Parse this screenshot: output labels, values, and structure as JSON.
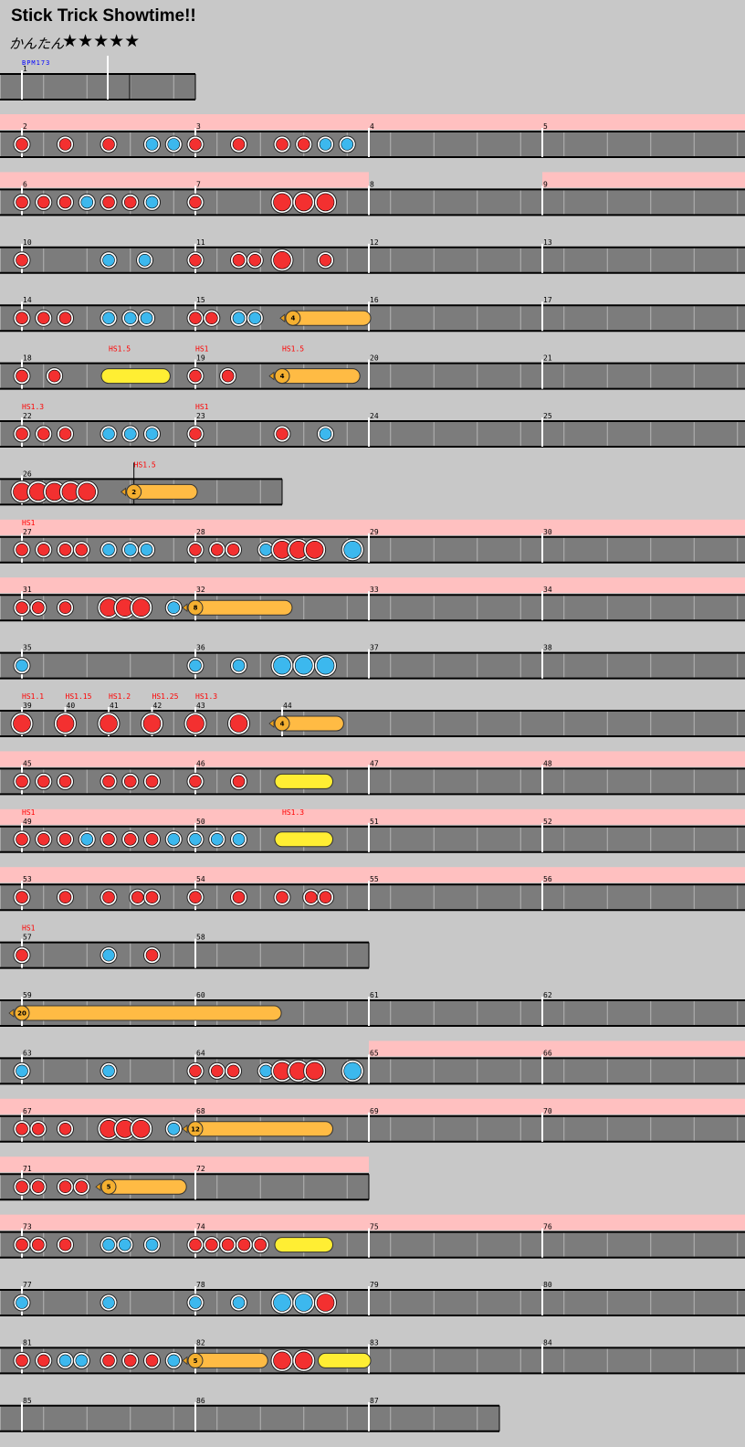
{
  "song": {
    "title": "Stick Trick Showtime!!",
    "difficulty": "かんたん",
    "stars": "★★★★★",
    "bpm_label": "BPM173"
  },
  "colors": {
    "background": "#c8c8c8",
    "lane": "#7c7c7c",
    "gogo": "#ffc0c0",
    "don": "#f33030",
    "ka": "#3cb8ee",
    "drumroll": "#ffbb44",
    "yellow_roll": "#ffee33",
    "hs_text": "#ff0000",
    "bpm_text": "#0000ff"
  },
  "icons": {
    "don_note": "red-circle",
    "ka_note": "blue-circle",
    "roll_head": "orange-circle",
    "balloon_tail": "arrow-icon"
  },
  "legend_note_types": {
    "d": "don (small)",
    "D": "don (large)",
    "k": "ka (small)",
    "K": "ka (large)"
  },
  "rows": [
    {
      "measures": [
        1
      ],
      "length": 1,
      "gogo": [],
      "notes": [],
      "hs": []
    },
    {
      "measures": [
        2,
        3,
        4,
        5
      ],
      "gogo": [
        [
          0,
          4
        ]
      ],
      "hs": [],
      "notes": [
        [
          "d",
          0
        ],
        [
          "d",
          4
        ],
        [
          "d",
          8
        ],
        [
          "k",
          12
        ],
        [
          "k",
          14
        ],
        [
          "d",
          16
        ],
        [
          "d",
          20
        ],
        [
          "d",
          24
        ],
        [
          "d",
          26
        ],
        [
          "k",
          28
        ],
        [
          "k",
          30
        ]
      ]
    },
    {
      "measures": [
        6,
        7,
        8,
        9
      ],
      "gogo": [
        [
          0,
          2
        ],
        [
          3,
          4
        ]
      ],
      "hs": [],
      "notes": [
        [
          "d",
          0
        ],
        [
          "d",
          2
        ],
        [
          "d",
          4
        ],
        [
          "k",
          6
        ],
        [
          "d",
          8
        ],
        [
          "d",
          10
        ],
        [
          "k",
          12
        ],
        [
          "d",
          16
        ],
        [
          "D",
          24
        ],
        [
          "D",
          26
        ],
        [
          "D",
          28
        ]
      ]
    },
    {
      "measures": [
        10,
        11,
        12,
        13
      ],
      "gogo": [],
      "hs": [],
      "notes": [
        [
          "d",
          0
        ],
        [
          "k",
          8
        ],
        [
          "k",
          11.33
        ],
        [
          "d",
          16
        ],
        [
          "d",
          20
        ],
        [
          "d",
          21.5
        ],
        [
          "D",
          24
        ],
        [
          "d",
          28
        ]
      ]
    },
    {
      "measures": [
        14,
        15,
        16,
        17
      ],
      "gogo": [],
      "hs": [],
      "notes": [
        [
          "d",
          0
        ],
        [
          "d",
          2
        ],
        [
          "d",
          4
        ],
        [
          "k",
          8
        ],
        [
          "k",
          10
        ],
        [
          "k",
          11.5
        ],
        [
          "d",
          16
        ],
        [
          "d",
          17.5
        ],
        [
          "k",
          20
        ],
        [
          "k",
          21.5
        ]
      ],
      "rolls": [
        {
          "type": "balloon",
          "start": 25,
          "end": 31.5,
          "count": "4"
        }
      ]
    },
    {
      "measures": [
        18,
        19,
        20,
        21
      ],
      "gogo": [],
      "hs": [
        {
          "at": 8,
          "text": "HS1.5"
        },
        {
          "at": 16,
          "text": "HS1"
        },
        {
          "at": 24,
          "text": "HS1.5"
        }
      ],
      "notes": [
        [
          "d",
          0
        ],
        [
          "d",
          3
        ],
        [
          "d",
          16
        ],
        [
          "d",
          19
        ]
      ],
      "rolls": [
        {
          "type": "yellow",
          "start": 8,
          "end": 13
        },
        {
          "type": "balloon",
          "start": 24,
          "end": 30.5,
          "count": "4"
        }
      ]
    },
    {
      "measures": [
        22,
        23,
        24,
        25
      ],
      "gogo": [],
      "hs": [
        {
          "at": 0,
          "text": "HS1.3"
        },
        {
          "at": 16,
          "text": "HS1"
        }
      ],
      "notes": [
        [
          "d",
          0
        ],
        [
          "d",
          2
        ],
        [
          "d",
          4
        ],
        [
          "k",
          8
        ],
        [
          "k",
          10
        ],
        [
          "k",
          12
        ],
        [
          "d",
          16
        ],
        [
          "d",
          24
        ],
        [
          "k",
          28
        ]
      ]
    },
    {
      "measures": [
        26
      ],
      "length": 1.5,
      "gogo": [],
      "hs": [
        {
          "at": 10.33,
          "text": "HS1.5",
          "flag": true
        }
      ],
      "notes": [
        [
          "D",
          0
        ],
        [
          "D",
          1.5
        ],
        [
          "D",
          3
        ],
        [
          "D",
          4.5
        ],
        [
          "D",
          6
        ]
      ],
      "rolls": [
        {
          "type": "balloon",
          "start": 10.33,
          "end": 15.5,
          "count": "2"
        }
      ]
    },
    {
      "measures": [
        27,
        28,
        29,
        30
      ],
      "gogo": [
        [
          0,
          4
        ]
      ],
      "hs": [
        {
          "at": 0,
          "text": "HS1"
        }
      ],
      "notes": [
        [
          "d",
          0
        ],
        [
          "d",
          2
        ],
        [
          "d",
          4
        ],
        [
          "d",
          5.5
        ],
        [
          "k",
          8
        ],
        [
          "k",
          10
        ],
        [
          "k",
          11.5
        ],
        [
          "d",
          16
        ],
        [
          "d",
          18
        ],
        [
          "d",
          19.5
        ],
        [
          "k",
          22.5
        ],
        [
          "D",
          24
        ],
        [
          "D",
          25.5
        ],
        [
          "D",
          27
        ],
        [
          "K",
          30.5
        ]
      ]
    },
    {
      "measures": [
        31,
        32,
        33,
        34
      ],
      "gogo": [
        [
          0,
          4
        ]
      ],
      "hs": [],
      "notes": [
        [
          "d",
          0
        ],
        [
          "d",
          1.5
        ],
        [
          "d",
          4
        ],
        [
          "D",
          8
        ],
        [
          "D",
          9.5
        ],
        [
          "D",
          11
        ],
        [
          "k",
          14
        ]
      ],
      "rolls": [
        {
          "type": "balloon",
          "start": 16,
          "end": 24.25,
          "count": "8"
        }
      ]
    },
    {
      "measures": [
        35,
        36,
        37,
        38
      ],
      "gogo": [],
      "hs": [],
      "notes": [
        [
          "k",
          0
        ],
        [
          "k",
          16
        ],
        [
          "k",
          20
        ],
        [
          "K",
          24
        ],
        [
          "K",
          26
        ],
        [
          "K",
          28
        ]
      ]
    },
    {
      "measures": [
        39,
        40,
        41,
        42,
        43,
        44
      ],
      "bars": [
        0,
        4,
        8,
        12,
        16,
        24
      ],
      "gogo": [],
      "hs": [
        {
          "at": 0,
          "text": "HS1.1"
        },
        {
          "at": 4,
          "text": "HS1.15"
        },
        {
          "at": 8,
          "text": "HS1.2"
        },
        {
          "at": 12,
          "text": "HS1.25"
        },
        {
          "at": 16,
          "text": "HS1.3"
        }
      ],
      "notes": [
        [
          "D",
          0
        ],
        [
          "D",
          4
        ],
        [
          "D",
          8
        ],
        [
          "D",
          12
        ],
        [
          "D",
          16
        ],
        [
          "D",
          20
        ]
      ],
      "rolls": [
        {
          "type": "balloon",
          "start": 24,
          "end": 29,
          "count": "4"
        }
      ]
    },
    {
      "measures": [
        45,
        46,
        47,
        48
      ],
      "gogo": [
        [
          0,
          4
        ]
      ],
      "hs": [],
      "notes": [
        [
          "d",
          0
        ],
        [
          "d",
          2
        ],
        [
          "d",
          4
        ],
        [
          "d",
          8
        ],
        [
          "d",
          10
        ],
        [
          "d",
          12
        ],
        [
          "d",
          16
        ],
        [
          "d",
          20
        ]
      ],
      "rolls": [
        {
          "type": "yellow",
          "start": 24,
          "end": 28
        }
      ]
    },
    {
      "measures": [
        49,
        50,
        51,
        52
      ],
      "gogo": [
        [
          0,
          4
        ]
      ],
      "hs": [
        {
          "at": 0,
          "text": "HS1"
        },
        {
          "at": 24,
          "text": "HS1.3"
        }
      ],
      "notes": [
        [
          "d",
          0
        ],
        [
          "d",
          2
        ],
        [
          "d",
          4
        ],
        [
          "k",
          6
        ],
        [
          "d",
          8
        ],
        [
          "d",
          10
        ],
        [
          "d",
          12
        ],
        [
          "k",
          14
        ],
        [
          "k",
          16
        ],
        [
          "k",
          18
        ],
        [
          "k",
          20
        ]
      ],
      "rolls": [
        {
          "type": "yellow",
          "start": 24,
          "end": 28
        }
      ]
    },
    {
      "measures": [
        53,
        54,
        55,
        56
      ],
      "gogo": [
        [
          0,
          4
        ]
      ],
      "hs": [],
      "notes": [
        [
          "d",
          0
        ],
        [
          "d",
          4
        ],
        [
          "d",
          8
        ],
        [
          "d",
          10.67
        ],
        [
          "d",
          12
        ],
        [
          "d",
          16
        ],
        [
          "d",
          20
        ],
        [
          "d",
          24
        ],
        [
          "d",
          26.67
        ],
        [
          "d",
          28
        ]
      ]
    },
    {
      "measures": [
        57,
        58
      ],
      "length": 2,
      "gogo": [],
      "hs": [
        {
          "at": 0,
          "text": "HS1"
        }
      ],
      "notes": [
        [
          "d",
          0
        ],
        [
          "k",
          8
        ],
        [
          "d",
          12
        ]
      ]
    },
    {
      "measures": [
        59,
        60,
        61,
        62
      ],
      "gogo": [],
      "hs": [],
      "notes": [],
      "rolls": [
        {
          "type": "balloon",
          "start": 0,
          "end": 23.25,
          "count": "20"
        }
      ]
    },
    {
      "measures": [
        63,
        64,
        65,
        66
      ],
      "gogo": [
        [
          2,
          4
        ]
      ],
      "hs": [],
      "notes": [
        [
          "k",
          0
        ],
        [
          "k",
          8
        ],
        [
          "d",
          16
        ],
        [
          "d",
          18
        ],
        [
          "d",
          19.5
        ],
        [
          "k",
          22.5
        ],
        [
          "D",
          24
        ],
        [
          "D",
          25.5
        ],
        [
          "D",
          27
        ],
        [
          "K",
          30.5
        ]
      ]
    },
    {
      "measures": [
        67,
        68,
        69,
        70
      ],
      "gogo": [
        [
          0,
          4
        ]
      ],
      "hs": [],
      "notes": [
        [
          "d",
          0
        ],
        [
          "d",
          1.5
        ],
        [
          "d",
          4
        ],
        [
          "D",
          8
        ],
        [
          "D",
          9.5
        ],
        [
          "D",
          11
        ],
        [
          "k",
          14
        ]
      ],
      "rolls": [
        {
          "type": "balloon",
          "start": 16,
          "end": 28,
          "count": "12"
        }
      ]
    },
    {
      "measures": [
        71,
        72
      ],
      "length": 2,
      "gogo": [
        [
          0,
          2
        ]
      ],
      "hs": [],
      "notes": [
        [
          "d",
          0
        ],
        [
          "d",
          1.5
        ],
        [
          "d",
          4
        ],
        [
          "d",
          5.5
        ]
      ],
      "rolls": [
        {
          "type": "balloon",
          "start": 8,
          "end": 14.5,
          "count": "5"
        }
      ]
    },
    {
      "measures": [
        73,
        74,
        75,
        76
      ],
      "gogo": [
        [
          0,
          4
        ]
      ],
      "hs": [],
      "notes": [
        [
          "d",
          0
        ],
        [
          "d",
          1.5
        ],
        [
          "d",
          4
        ],
        [
          "k",
          8
        ],
        [
          "k",
          9.5
        ],
        [
          "k",
          12
        ],
        [
          "d",
          16
        ],
        [
          "d",
          17.5
        ],
        [
          "d",
          19
        ],
        [
          "d",
          20.5
        ],
        [
          "d",
          22
        ]
      ],
      "rolls": [
        {
          "type": "yellow",
          "start": 24,
          "end": 28
        }
      ]
    },
    {
      "measures": [
        77,
        78,
        79,
        80
      ],
      "gogo": [],
      "hs": [],
      "notes": [
        [
          "k",
          0
        ],
        [
          "k",
          8
        ],
        [
          "k",
          16
        ],
        [
          "k",
          20
        ],
        [
          "K",
          24
        ],
        [
          "K",
          26
        ],
        [
          "D",
          28
        ]
      ]
    },
    {
      "measures": [
        81,
        82,
        83,
        84
      ],
      "gogo": [],
      "hs": [],
      "notes": [
        [
          "d",
          0
        ],
        [
          "d",
          2
        ],
        [
          "k",
          4
        ],
        [
          "k",
          5.5
        ],
        [
          "d",
          8
        ],
        [
          "d",
          10
        ],
        [
          "d",
          12
        ],
        [
          "k",
          14
        ],
        [
          "D",
          24
        ],
        [
          "D",
          26
        ]
      ],
      "rolls": [
        {
          "type": "balloon",
          "start": 16,
          "end": 22,
          "count": "5"
        },
        {
          "type": "yellow",
          "start": 28,
          "end": 31.5
        }
      ]
    },
    {
      "measures": [
        85,
        86,
        87
      ],
      "length": 2.75,
      "gogo": [],
      "hs": [],
      "notes": []
    }
  ]
}
